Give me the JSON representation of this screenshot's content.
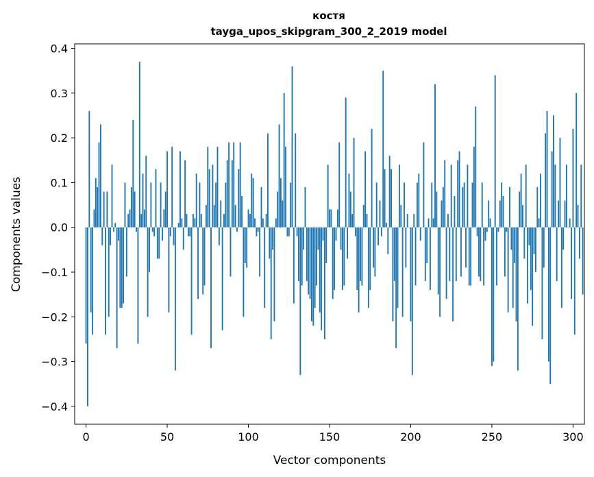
{
  "chart_data": {
    "type": "bar",
    "title": "костя",
    "subtitle": "tayga_upos_skipgram_300_2_2019 model",
    "xlabel": "Vector components",
    "ylabel": "Components values",
    "xlim": [
      -7,
      307
    ],
    "ylim": [
      -0.44,
      0.41
    ],
    "xticks": [
      0,
      50,
      100,
      150,
      200,
      250,
      300
    ],
    "xtick_labels": [
      "0",
      "50",
      "100",
      "150",
      "200",
      "250",
      "300"
    ],
    "yticks": [
      0.4,
      0.3,
      0.2,
      0.1,
      0.0,
      -0.1,
      -0.2,
      -0.3,
      -0.4
    ],
    "ytick_labels": [
      "0.4",
      "0.3",
      "0.2",
      "0.1",
      "0.0",
      "−0.1",
      "−0.2",
      "−0.3",
      "−0.4"
    ],
    "grid": false,
    "bar_color": "#1f77b4",
    "values": [
      -0.26,
      -0.4,
      0.26,
      -0.19,
      -0.24,
      0.04,
      0.11,
      0.09,
      0.19,
      0.23,
      -0.04,
      0.08,
      -0.24,
      0.08,
      -0.2,
      -0.04,
      0.14,
      -0.01,
      0.01,
      -0.27,
      -0.03,
      -0.18,
      -0.18,
      -0.17,
      0.1,
      -0.11,
      0.03,
      0.04,
      0.09,
      0.24,
      0.08,
      -0.01,
      -0.26,
      0.37,
      0.03,
      0.12,
      0.04,
      0.16,
      -0.2,
      -0.1,
      0.1,
      -0.01,
      -0.02,
      0.13,
      -0.07,
      -0.07,
      0.1,
      -0.03,
      0.04,
      0.08,
      0.17,
      -0.19,
      -0.02,
      0.18,
      -0.04,
      -0.32,
      0.0,
      0.01,
      0.17,
      0.02,
      -0.05,
      0.15,
      0.03,
      -0.02,
      -0.02,
      -0.24,
      0.03,
      0.02,
      0.12,
      -0.16,
      0.1,
      0.03,
      -0.15,
      -0.13,
      0.05,
      0.18,
      0.13,
      -0.27,
      0.14,
      0.05,
      0.1,
      0.18,
      -0.04,
      0.06,
      -0.23,
      0.03,
      0.1,
      0.15,
      0.19,
      -0.11,
      0.15,
      0.19,
      0.05,
      -0.01,
      0.13,
      0.19,
      0.07,
      -0.2,
      -0.08,
      -0.09,
      0.04,
      0.03,
      0.12,
      0.11,
      0.02,
      -0.02,
      -0.01,
      -0.11,
      0.09,
      0.02,
      -0.18,
      0.03,
      0.21,
      -0.07,
      -0.25,
      -0.05,
      -0.21,
      0.02,
      0.08,
      0.23,
      0.11,
      0.06,
      0.3,
      0.18,
      -0.02,
      -0.02,
      0.1,
      0.36,
      -0.17,
      0.21,
      -0.02,
      -0.12,
      -0.33,
      -0.13,
      -0.05,
      0.09,
      -0.12,
      -0.15,
      -0.16,
      -0.21,
      -0.22,
      -0.18,
      -0.13,
      -0.05,
      -0.19,
      -0.23,
      -0.03,
      -0.25,
      -0.08,
      0.14,
      0.04,
      0.04,
      -0.16,
      -0.14,
      -0.03,
      0.04,
      0.19,
      -0.05,
      -0.14,
      -0.13,
      0.29,
      -0.07,
      0.12,
      0.08,
      0.03,
      0.2,
      -0.02,
      -0.14,
      -0.19,
      -0.12,
      -0.13,
      0.05,
      0.17,
      0.03,
      -0.18,
      -0.14,
      0.22,
      -0.09,
      -0.11,
      0.1,
      -0.04,
      0.06,
      -0.02,
      0.35,
      0.13,
      0.01,
      -0.06,
      0.16,
      0.13,
      -0.21,
      -0.12,
      -0.27,
      -0.18,
      0.14,
      0.05,
      -0.2,
      0.1,
      -0.09,
      0.03,
      0.0,
      -0.21,
      -0.33,
      0.03,
      -0.13,
      0.1,
      0.12,
      -0.03,
      0.0,
      0.19,
      -0.12,
      -0.08,
      0.02,
      -0.14,
      0.1,
      0.02,
      0.32,
      0.08,
      -0.15,
      -0.2,
      0.06,
      0.09,
      0.15,
      -0.16,
      0.03,
      -0.12,
      0.14,
      -0.21,
      0.07,
      -0.12,
      0.15,
      0.17,
      -0.11,
      0.09,
      0.1,
      -0.09,
      0.14,
      -0.13,
      -0.13,
      0.1,
      0.18,
      0.27,
      -0.02,
      -0.11,
      -0.12,
      0.1,
      -0.13,
      -0.03,
      -0.01,
      0.06,
      0.02,
      -0.31,
      -0.3,
      0.34,
      -0.13,
      -0.01,
      0.06,
      0.1,
      0.07,
      -0.11,
      -0.01,
      -0.19,
      0.09,
      -0.05,
      -0.18,
      -0.08,
      -0.21,
      -0.32,
      0.08,
      0.12,
      0.05,
      -0.07,
      0.14,
      -0.17,
      -0.04,
      -0.14,
      -0.22,
      -0.06,
      -0.1,
      0.09,
      0.02,
      0.12,
      -0.25,
      -0.09,
      0.21,
      0.26,
      -0.3,
      -0.35,
      0.17,
      0.25,
      0.14,
      -0.12,
      0.06,
      0.2,
      -0.18,
      -0.05,
      0.06,
      0.14,
      0.0,
      0.02,
      -0.16,
      0.22,
      -0.24,
      0.3,
      0.05,
      -0.07,
      0.14,
      -0.15
    ]
  }
}
